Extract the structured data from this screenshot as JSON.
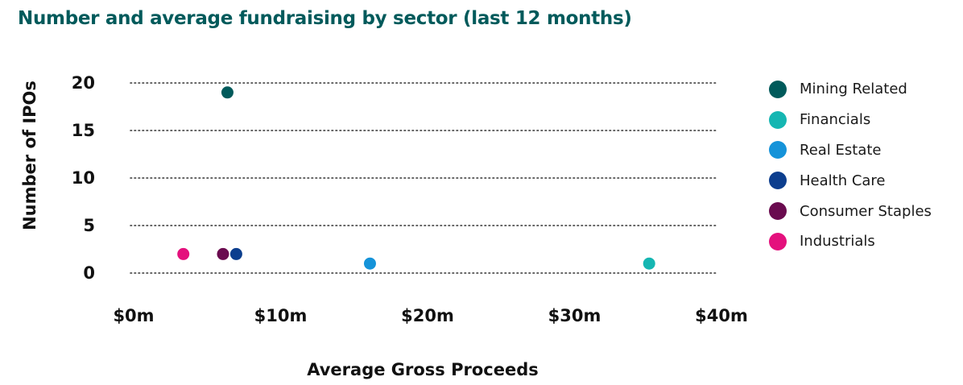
{
  "chart_data": {
    "type": "scatter",
    "title": "Number and average fundraising by sector (last 12 months)",
    "xlabel": "Average Gross Proceeds",
    "ylabel": "Number of IPOs",
    "xlim": [
      0,
      40
    ],
    "ylim": [
      0,
      20
    ],
    "x_ticks": [
      0,
      10,
      20,
      30,
      40
    ],
    "x_tick_labels": [
      "$0m",
      "$10m",
      "$20m",
      "$30m",
      "$40m"
    ],
    "y_ticks": [
      0,
      5,
      10,
      15,
      20
    ],
    "y_tick_labels": [
      "0",
      "5",
      "10",
      "15",
      "20"
    ],
    "grid": "horizontal dotted",
    "legend_position": "right",
    "series": [
      {
        "name": "Mining Related",
        "color": "#005a5b",
        "points": [
          {
            "x": 6.6,
            "y": 19
          }
        ]
      },
      {
        "name": "Financials",
        "color": "#15b6b2",
        "points": [
          {
            "x": 35.3,
            "y": 1
          }
        ]
      },
      {
        "name": "Real Estate",
        "color": "#1593d9",
        "points": [
          {
            "x": 16.3,
            "y": 1
          }
        ]
      },
      {
        "name": "Health Care",
        "color": "#0c3e8e",
        "points": [
          {
            "x": 7.2,
            "y": 2
          }
        ]
      },
      {
        "name": "Consumer Staples",
        "color": "#6a0b4f",
        "points": [
          {
            "x": 6.3,
            "y": 2
          }
        ]
      },
      {
        "name": "Industrials",
        "color": "#e4117d",
        "points": [
          {
            "x": 3.6,
            "y": 2
          }
        ]
      }
    ]
  }
}
